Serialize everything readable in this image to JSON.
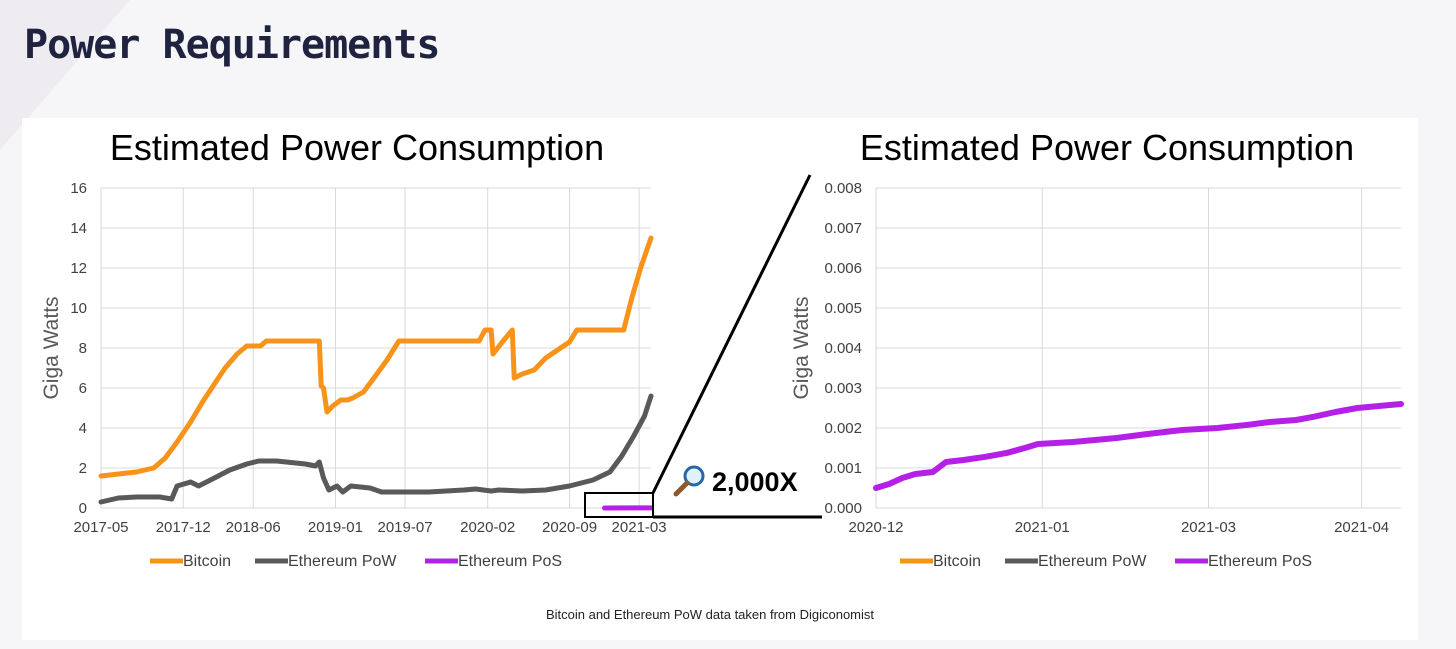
{
  "page": {
    "title": "Power Requirements",
    "source_note": "Bitcoin and Ethereum PoW data taken from Digiconomist",
    "zoom_label": "2,000X",
    "zoom_icon": "magnifier-icon"
  },
  "colors": {
    "bitcoin": "#f7931a",
    "ethereum_pow": "#595959",
    "ethereum_pos": "#b520e8",
    "grid": "#d9d9d9",
    "title": "#1f2340"
  },
  "chart_data": [
    {
      "type": "line",
      "title": "Estimated Power Consumption",
      "ylabel": "Giga Watts",
      "xlabel": "",
      "ylim": [
        0,
        16
      ],
      "yticks": [
        "0",
        "2",
        "4",
        "6",
        "8",
        "10",
        "12",
        "14",
        "16"
      ],
      "xlim": [
        "2017-05",
        "2021-04"
      ],
      "xticks": [
        "2017-05",
        "2017-12",
        "2018-06",
        "2019-01",
        "2019-07",
        "2020-02",
        "2020-09",
        "2021-03"
      ],
      "grid": true,
      "legend_position": "bottom",
      "series": [
        {
          "name": "Bitcoin",
          "points": [
            [
              "2017-05-01",
              1.6
            ],
            [
              "2017-06-15",
              1.7
            ],
            [
              "2017-08-01",
              1.8
            ],
            [
              "2017-09-15",
              2.0
            ],
            [
              "2017-10-15",
              2.5
            ],
            [
              "2017-11-15",
              3.3
            ],
            [
              "2017-12-20",
              4.3
            ],
            [
              "2018-01-20",
              5.3
            ],
            [
              "2018-02-20",
              6.2
            ],
            [
              "2018-03-20",
              7.0
            ],
            [
              "2018-04-20",
              7.7
            ],
            [
              "2018-05-15",
              8.1
            ],
            [
              "2018-06-20",
              8.1
            ],
            [
              "2018-07-05",
              8.35
            ],
            [
              "2018-11-20",
              8.35
            ],
            [
              "2018-11-25",
              6.1
            ],
            [
              "2018-12-01",
              6.0
            ],
            [
              "2018-12-10",
              4.8
            ],
            [
              "2018-12-25",
              5.1
            ],
            [
              "2019-01-15",
              5.4
            ],
            [
              "2019-02-01",
              5.4
            ],
            [
              "2019-02-15",
              5.5
            ],
            [
              "2019-03-15",
              5.8
            ],
            [
              "2019-04-15",
              6.6
            ],
            [
              "2019-05-15",
              7.4
            ],
            [
              "2019-06-15",
              8.35
            ],
            [
              "2020-01-10",
              8.35
            ],
            [
              "2020-01-25",
              8.9
            ],
            [
              "2020-02-10",
              8.9
            ],
            [
              "2020-02-15",
              7.7
            ],
            [
              "2020-03-10",
              8.3
            ],
            [
              "2020-04-05",
              8.9
            ],
            [
              "2020-04-10",
              6.5
            ],
            [
              "2020-05-01",
              6.7
            ],
            [
              "2020-06-01",
              6.9
            ],
            [
              "2020-07-01",
              7.5
            ],
            [
              "2020-08-01",
              7.9
            ],
            [
              "2020-09-01",
              8.3
            ],
            [
              "2020-09-20",
              8.9
            ],
            [
              "2021-01-20",
              8.9
            ],
            [
              "2021-02-10",
              10.5
            ],
            [
              "2021-03-05",
              12.0
            ],
            [
              "2021-04-01",
              13.5
            ]
          ]
        },
        {
          "name": "Ethereum PoW",
          "points": [
            [
              "2017-05-01",
              0.3
            ],
            [
              "2017-06-15",
              0.5
            ],
            [
              "2017-08-01",
              0.55
            ],
            [
              "2017-10-01",
              0.55
            ],
            [
              "2017-11-01",
              0.45
            ],
            [
              "2017-11-15",
              1.1
            ],
            [
              "2017-12-20",
              1.3
            ],
            [
              "2018-01-10",
              1.1
            ],
            [
              "2018-02-20",
              1.5
            ],
            [
              "2018-04-01",
              1.9
            ],
            [
              "2018-05-15",
              2.2
            ],
            [
              "2018-06-15",
              2.35
            ],
            [
              "2018-08-01",
              2.35
            ],
            [
              "2018-10-15",
              2.2
            ],
            [
              "2018-11-10",
              2.1
            ],
            [
              "2018-11-20",
              2.3
            ],
            [
              "2018-12-01",
              1.5
            ],
            [
              "2018-12-15",
              0.9
            ],
            [
              "2019-01-05",
              1.1
            ],
            [
              "2019-01-20",
              0.8
            ],
            [
              "2019-02-10",
              1.1
            ],
            [
              "2019-04-01",
              1.0
            ],
            [
              "2019-05-01",
              0.8
            ],
            [
              "2019-09-01",
              0.8
            ],
            [
              "2019-12-01",
              0.9
            ],
            [
              "2020-01-01",
              0.95
            ],
            [
              "2020-02-10",
              0.85
            ],
            [
              "2020-03-01",
              0.9
            ],
            [
              "2020-05-01",
              0.85
            ],
            [
              "2020-07-01",
              0.9
            ],
            [
              "2020-09-01",
              1.1
            ],
            [
              "2020-11-01",
              1.4
            ],
            [
              "2020-12-15",
              1.8
            ],
            [
              "2021-01-15",
              2.6
            ],
            [
              "2021-02-15",
              3.6
            ],
            [
              "2021-03-15",
              4.6
            ],
            [
              "2021-04-01",
              5.6
            ]
          ]
        },
        {
          "name": "Ethereum PoS",
          "points": [
            [
              "2020-12-01",
              0.0005
            ],
            [
              "2021-04-01",
              0.0026
            ]
          ]
        }
      ]
    },
    {
      "type": "line",
      "title": "Estimated Power Consumption",
      "ylabel": "Giga Watts",
      "xlabel": "",
      "ylim": [
        0,
        0.008
      ],
      "yticks": [
        "0.000",
        "0.001",
        "0.002",
        "0.003",
        "0.004",
        "0.005",
        "0.006",
        "0.007",
        "0.008"
      ],
      "xticks": [
        "2020-12",
        "2021-01",
        "2021-03",
        "2021-04"
      ],
      "grid": true,
      "legend_position": "bottom",
      "series": [
        {
          "name": "Bitcoin",
          "points": []
        },
        {
          "name": "Ethereum PoW",
          "points": []
        },
        {
          "name": "Ethereum PoS",
          "points": [
            [
              0,
              0.0005
            ],
            [
              0.03,
              0.0006
            ],
            [
              0.06,
              0.00075
            ],
            [
              0.09,
              0.00085
            ],
            [
              0.13,
              0.0009
            ],
            [
              0.16,
              0.00115
            ],
            [
              0.2,
              0.0012
            ],
            [
              0.25,
              0.00128
            ],
            [
              0.3,
              0.00138
            ],
            [
              0.34,
              0.0015
            ],
            [
              0.37,
              0.0016
            ],
            [
              0.45,
              0.00165
            ],
            [
              0.55,
              0.00175
            ],
            [
              0.62,
              0.00185
            ],
            [
              0.7,
              0.00195
            ],
            [
              0.78,
              0.002
            ],
            [
              0.85,
              0.00208
            ],
            [
              0.9,
              0.00215
            ],
            [
              0.96,
              0.0022
            ],
            [
              1.0,
              0.00228
            ],
            [
              1.05,
              0.0024
            ],
            [
              1.1,
              0.0025
            ],
            [
              1.2,
              0.0026
            ]
          ]
        }
      ]
    }
  ]
}
